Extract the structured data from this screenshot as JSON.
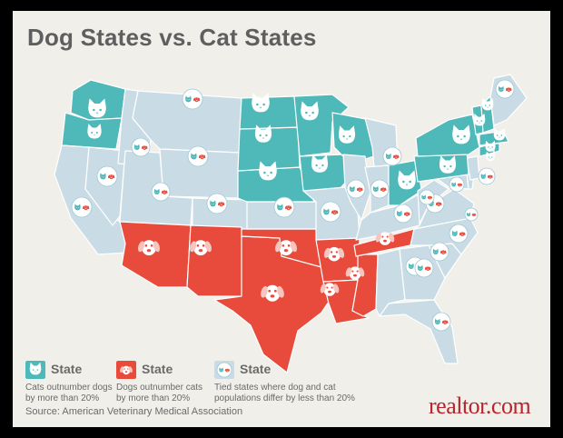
{
  "title": "Dog States vs. Cat States",
  "colors": {
    "cat": "#4fb8b9",
    "dog": "#e84b3c",
    "tie": "#c9dce6",
    "border": "#ffffff",
    "background": "#f1efea"
  },
  "categories": {
    "cat": "cat-icon",
    "dog": "dog-icon",
    "tie": "cat-and-dog-icon"
  },
  "states": [
    {
      "name": "Washington",
      "group": "cat"
    },
    {
      "name": "Oregon",
      "group": "cat"
    },
    {
      "name": "California",
      "group": "tie"
    },
    {
      "name": "Nevada",
      "group": "tie"
    },
    {
      "name": "Idaho",
      "group": "tie"
    },
    {
      "name": "Montana",
      "group": "tie"
    },
    {
      "name": "Wyoming",
      "group": "tie"
    },
    {
      "name": "Utah",
      "group": "tie"
    },
    {
      "name": "Colorado",
      "group": "tie"
    },
    {
      "name": "Arizona",
      "group": "dog"
    },
    {
      "name": "New Mexico",
      "group": "dog"
    },
    {
      "name": "Texas",
      "group": "dog"
    },
    {
      "name": "Oklahoma",
      "group": "dog"
    },
    {
      "name": "Kansas",
      "group": "tie"
    },
    {
      "name": "Nebraska",
      "group": "cat"
    },
    {
      "name": "South Dakota",
      "group": "cat"
    },
    {
      "name": "North Dakota",
      "group": "cat"
    },
    {
      "name": "Minnesota",
      "group": "cat"
    },
    {
      "name": "Iowa",
      "group": "cat"
    },
    {
      "name": "Missouri",
      "group": "tie"
    },
    {
      "name": "Arkansas",
      "group": "dog"
    },
    {
      "name": "Louisiana",
      "group": "dog"
    },
    {
      "name": "Mississippi",
      "group": "dog"
    },
    {
      "name": "Tennessee",
      "group": "dog"
    },
    {
      "name": "Wisconsin",
      "group": "cat"
    },
    {
      "name": "Illinois",
      "group": "tie"
    },
    {
      "name": "Michigan",
      "group": "tie"
    },
    {
      "name": "Indiana",
      "group": "tie"
    },
    {
      "name": "Ohio",
      "group": "cat"
    },
    {
      "name": "Kentucky",
      "group": "tie"
    },
    {
      "name": "Alabama",
      "group": "tie"
    },
    {
      "name": "Georgia",
      "group": "tie"
    },
    {
      "name": "Florida",
      "group": "tie"
    },
    {
      "name": "South Carolina",
      "group": "tie"
    },
    {
      "name": "North Carolina",
      "group": "tie"
    },
    {
      "name": "Virginia",
      "group": "tie"
    },
    {
      "name": "West Virginia",
      "group": "tie"
    },
    {
      "name": "Maryland",
      "group": "tie"
    },
    {
      "name": "Delaware",
      "group": "tie"
    },
    {
      "name": "New Jersey",
      "group": "tie"
    },
    {
      "name": "Pennsylvania",
      "group": "cat"
    },
    {
      "name": "New York",
      "group": "cat"
    },
    {
      "name": "Connecticut",
      "group": "cat"
    },
    {
      "name": "Rhode Island",
      "group": "cat"
    },
    {
      "name": "Massachusetts",
      "group": "cat"
    },
    {
      "name": "Vermont",
      "group": "cat"
    },
    {
      "name": "New Hampshire",
      "group": "cat"
    },
    {
      "name": "Maine",
      "group": "tie"
    }
  ],
  "legend": [
    {
      "group": "cat",
      "label": "State",
      "description": [
        "Cats outnumber dogs",
        "by more than 20%"
      ]
    },
    {
      "group": "dog",
      "label": "State",
      "description": [
        "Dogs outnumber cats",
        "by more than 20%"
      ]
    },
    {
      "group": "tie",
      "label": "State",
      "description": [
        "Tied states where dog and cat",
        "populations differ by less than 20%"
      ]
    }
  ],
  "source": "Source: American Veterinary Medical Association",
  "brand": "realtor.com"
}
